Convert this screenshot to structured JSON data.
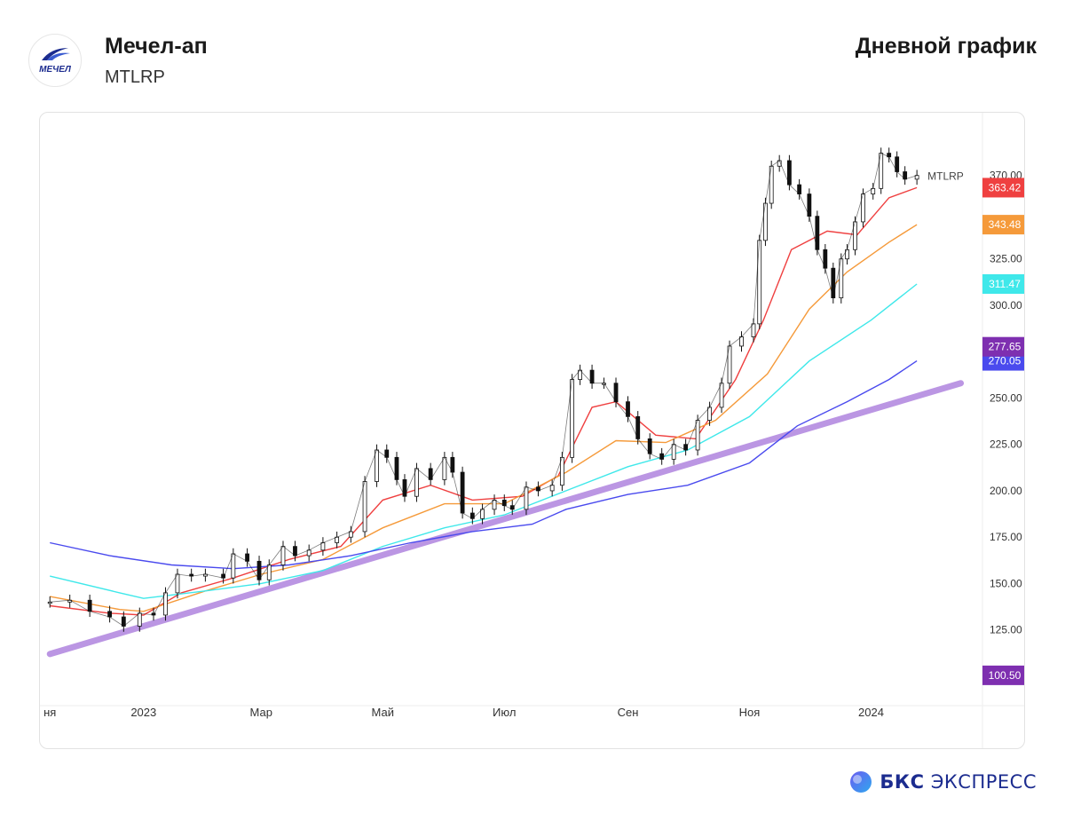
{
  "header": {
    "title": "Мечел-ап",
    "ticker": "MTLRP",
    "chart_type_label": "Дневной график",
    "logo_text": "МЕЧЕЛ"
  },
  "brand": {
    "bold": "БКС",
    "light": "ЭКСПРЕСС"
  },
  "chart_data": {
    "type": "line",
    "title": "Мечел-ап",
    "ylim": [
      88,
      400
    ],
    "yticks": [
      "125.00",
      "150.00",
      "175.00",
      "200.00",
      "225.00",
      "250.00",
      "300.00",
      "325.00",
      "370.00"
    ],
    "yticks_values": [
      125,
      150,
      175,
      200,
      225,
      250,
      300,
      325,
      370
    ],
    "xticks": [
      "ня",
      "2023",
      "Мар",
      "Май",
      "Июл",
      "Сен",
      "Ноя",
      "2024"
    ],
    "xticks_dates": [
      "2022-11-15",
      "2023-01-01",
      "2023-03-01",
      "2023-05-01",
      "2023-07-01",
      "2023-09-01",
      "2023-11-01",
      "2024-01-01"
    ],
    "price_series_label": "MTLRP",
    "price_label": "370.00",
    "price_closes": [
      {
        "date": "2022-11-15",
        "close": 140
      },
      {
        "date": "2022-11-25",
        "close": 141
      },
      {
        "date": "2022-12-05",
        "close": 135
      },
      {
        "date": "2022-12-15",
        "close": 132
      },
      {
        "date": "2022-12-22",
        "close": 127
      },
      {
        "date": "2022-12-30",
        "close": 134
      },
      {
        "date": "2023-01-06",
        "close": 133
      },
      {
        "date": "2023-01-12",
        "close": 145
      },
      {
        "date": "2023-01-18",
        "close": 155
      },
      {
        "date": "2023-01-25",
        "close": 154
      },
      {
        "date": "2023-02-01",
        "close": 155
      },
      {
        "date": "2023-02-10",
        "close": 153
      },
      {
        "date": "2023-02-15",
        "close": 166
      },
      {
        "date": "2023-02-22",
        "close": 162
      },
      {
        "date": "2023-02-28",
        "close": 152
      },
      {
        "date": "2023-03-05",
        "close": 160
      },
      {
        "date": "2023-03-12",
        "close": 170
      },
      {
        "date": "2023-03-18",
        "close": 165
      },
      {
        "date": "2023-03-25",
        "close": 168
      },
      {
        "date": "2023-04-01",
        "close": 172
      },
      {
        "date": "2023-04-08",
        "close": 175
      },
      {
        "date": "2023-04-15",
        "close": 178
      },
      {
        "date": "2023-04-22",
        "close": 205
      },
      {
        "date": "2023-04-28",
        "close": 222
      },
      {
        "date": "2023-05-03",
        "close": 218
      },
      {
        "date": "2023-05-08",
        "close": 206
      },
      {
        "date": "2023-05-12",
        "close": 197
      },
      {
        "date": "2023-05-18",
        "close": 212
      },
      {
        "date": "2023-05-25",
        "close": 206
      },
      {
        "date": "2023-06-01",
        "close": 218
      },
      {
        "date": "2023-06-05",
        "close": 210
      },
      {
        "date": "2023-06-10",
        "close": 188
      },
      {
        "date": "2023-06-15",
        "close": 185
      },
      {
        "date": "2023-06-20",
        "close": 190
      },
      {
        "date": "2023-06-26",
        "close": 195
      },
      {
        "date": "2023-07-01",
        "close": 192
      },
      {
        "date": "2023-07-05",
        "close": 190
      },
      {
        "date": "2023-07-12",
        "close": 202
      },
      {
        "date": "2023-07-18",
        "close": 200
      },
      {
        "date": "2023-07-25",
        "close": 203
      },
      {
        "date": "2023-07-30",
        "close": 218
      },
      {
        "date": "2023-08-04",
        "close": 260
      },
      {
        "date": "2023-08-08",
        "close": 265
      },
      {
        "date": "2023-08-14",
        "close": 258
      },
      {
        "date": "2023-08-20",
        "close": 258
      },
      {
        "date": "2023-08-26",
        "close": 248
      },
      {
        "date": "2023-09-01",
        "close": 240
      },
      {
        "date": "2023-09-06",
        "close": 228
      },
      {
        "date": "2023-09-12",
        "close": 220
      },
      {
        "date": "2023-09-18",
        "close": 217
      },
      {
        "date": "2023-09-24",
        "close": 225
      },
      {
        "date": "2023-09-30",
        "close": 222
      },
      {
        "date": "2023-10-06",
        "close": 238
      },
      {
        "date": "2023-10-12",
        "close": 245
      },
      {
        "date": "2023-10-18",
        "close": 258
      },
      {
        "date": "2023-10-22",
        "close": 278
      },
      {
        "date": "2023-10-28",
        "close": 283
      },
      {
        "date": "2023-11-03",
        "close": 290
      },
      {
        "date": "2023-11-06",
        "close": 335
      },
      {
        "date": "2023-11-09",
        "close": 355
      },
      {
        "date": "2023-11-12",
        "close": 375
      },
      {
        "date": "2023-11-16",
        "close": 378
      },
      {
        "date": "2023-11-21",
        "close": 365
      },
      {
        "date": "2023-11-26",
        "close": 360
      },
      {
        "date": "2023-12-01",
        "close": 348
      },
      {
        "date": "2023-12-05",
        "close": 330
      },
      {
        "date": "2023-12-09",
        "close": 320
      },
      {
        "date": "2023-12-13",
        "close": 304
      },
      {
        "date": "2023-12-17",
        "close": 325
      },
      {
        "date": "2023-12-20",
        "close": 330
      },
      {
        "date": "2023-12-24",
        "close": 345
      },
      {
        "date": "2023-12-28",
        "close": 360
      },
      {
        "date": "2024-01-02",
        "close": 363
      },
      {
        "date": "2024-01-06",
        "close": 382
      },
      {
        "date": "2024-01-10",
        "close": 380
      },
      {
        "date": "2024-01-14",
        "close": 372
      },
      {
        "date": "2024-01-18",
        "close": 368
      },
      {
        "date": "2024-01-24",
        "close": 370
      }
    ],
    "series": [
      {
        "name": "",
        "color": "#ef4040",
        "label": "363.42",
        "points": [
          {
            "date": "2022-11-15",
            "value": 138
          },
          {
            "date": "2022-12-15",
            "value": 134
          },
          {
            "date": "2023-01-01",
            "value": 133
          },
          {
            "date": "2023-01-20",
            "value": 145
          },
          {
            "date": "2023-02-15",
            "value": 153
          },
          {
            "date": "2023-03-15",
            "value": 163
          },
          {
            "date": "2023-04-10",
            "value": 170
          },
          {
            "date": "2023-05-01",
            "value": 195
          },
          {
            "date": "2023-05-25",
            "value": 203
          },
          {
            "date": "2023-06-15",
            "value": 195
          },
          {
            "date": "2023-07-10",
            "value": 197
          },
          {
            "date": "2023-07-28",
            "value": 208
          },
          {
            "date": "2023-08-14",
            "value": 245
          },
          {
            "date": "2023-08-26",
            "value": 248
          },
          {
            "date": "2023-09-15",
            "value": 230
          },
          {
            "date": "2023-10-05",
            "value": 228
          },
          {
            "date": "2023-10-25",
            "value": 260
          },
          {
            "date": "2023-11-08",
            "value": 292
          },
          {
            "date": "2023-11-22",
            "value": 330
          },
          {
            "date": "2023-12-10",
            "value": 340
          },
          {
            "date": "2023-12-25",
            "value": 338
          },
          {
            "date": "2024-01-10",
            "value": 358
          },
          {
            "date": "2024-01-24",
            "value": 363.42
          }
        ]
      },
      {
        "name": "",
        "color": "#f59a3a",
        "label": "343.48",
        "points": [
          {
            "date": "2022-11-15",
            "value": 143
          },
          {
            "date": "2022-12-20",
            "value": 136
          },
          {
            "date": "2023-01-01",
            "value": 135
          },
          {
            "date": "2023-02-01",
            "value": 146
          },
          {
            "date": "2023-03-01",
            "value": 155
          },
          {
            "date": "2023-04-01",
            "value": 163
          },
          {
            "date": "2023-05-01",
            "value": 180
          },
          {
            "date": "2023-06-01",
            "value": 193
          },
          {
            "date": "2023-07-01",
            "value": 193
          },
          {
            "date": "2023-08-01",
            "value": 210
          },
          {
            "date": "2023-08-26",
            "value": 227
          },
          {
            "date": "2023-09-20",
            "value": 226
          },
          {
            "date": "2023-10-15",
            "value": 238
          },
          {
            "date": "2023-11-10",
            "value": 263
          },
          {
            "date": "2023-12-01",
            "value": 298
          },
          {
            "date": "2023-12-20",
            "value": 318
          },
          {
            "date": "2024-01-10",
            "value": 334
          },
          {
            "date": "2024-01-24",
            "value": 343.48
          }
        ]
      },
      {
        "name": "",
        "color": "#3fe8ea",
        "label": "311.47",
        "points": [
          {
            "date": "2022-11-15",
            "value": 154
          },
          {
            "date": "2022-12-20",
            "value": 145
          },
          {
            "date": "2023-01-01",
            "value": 142
          },
          {
            "date": "2023-02-01",
            "value": 146
          },
          {
            "date": "2023-03-01",
            "value": 150
          },
          {
            "date": "2023-04-01",
            "value": 157
          },
          {
            "date": "2023-05-01",
            "value": 170
          },
          {
            "date": "2023-06-01",
            "value": 180
          },
          {
            "date": "2023-07-01",
            "value": 187
          },
          {
            "date": "2023-08-01",
            "value": 200
          },
          {
            "date": "2023-09-01",
            "value": 213
          },
          {
            "date": "2023-10-01",
            "value": 222
          },
          {
            "date": "2023-11-01",
            "value": 240
          },
          {
            "date": "2023-12-01",
            "value": 270
          },
          {
            "date": "2024-01-01",
            "value": 292
          },
          {
            "date": "2024-01-24",
            "value": 311.47
          }
        ]
      },
      {
        "name": "",
        "color": "#4a4aee",
        "label": "270.05",
        "points": [
          {
            "date": "2022-11-15",
            "value": 172
          },
          {
            "date": "2022-12-15",
            "value": 165
          },
          {
            "date": "2023-01-15",
            "value": 160
          },
          {
            "date": "2023-02-15",
            "value": 158
          },
          {
            "date": "2023-03-15",
            "value": 160
          },
          {
            "date": "2023-04-15",
            "value": 165
          },
          {
            "date": "2023-05-15",
            "value": 172
          },
          {
            "date": "2023-06-15",
            "value": 178
          },
          {
            "date": "2023-07-15",
            "value": 182
          },
          {
            "date": "2023-08-01",
            "value": 190
          },
          {
            "date": "2023-09-01",
            "value": 198
          },
          {
            "date": "2023-10-01",
            "value": 203
          },
          {
            "date": "2023-11-01",
            "value": 215
          },
          {
            "date": "2023-11-25",
            "value": 235
          },
          {
            "date": "2023-12-20",
            "value": 248
          },
          {
            "date": "2024-01-10",
            "value": 260
          },
          {
            "date": "2024-01-24",
            "value": 270.05
          }
        ]
      }
    ],
    "trendline": {
      "color": "#b48be0",
      "from": {
        "date": "2022-11-15",
        "value": 112
      },
      "to": {
        "date": "2024-02-15",
        "value": 258
      }
    },
    "price_tags": [
      {
        "value": 277.65,
        "label": "277.65",
        "color": "#7e2fb0"
      },
      {
        "value": 100.5,
        "label": "100.50",
        "color": "#7e2fb0"
      }
    ]
  }
}
